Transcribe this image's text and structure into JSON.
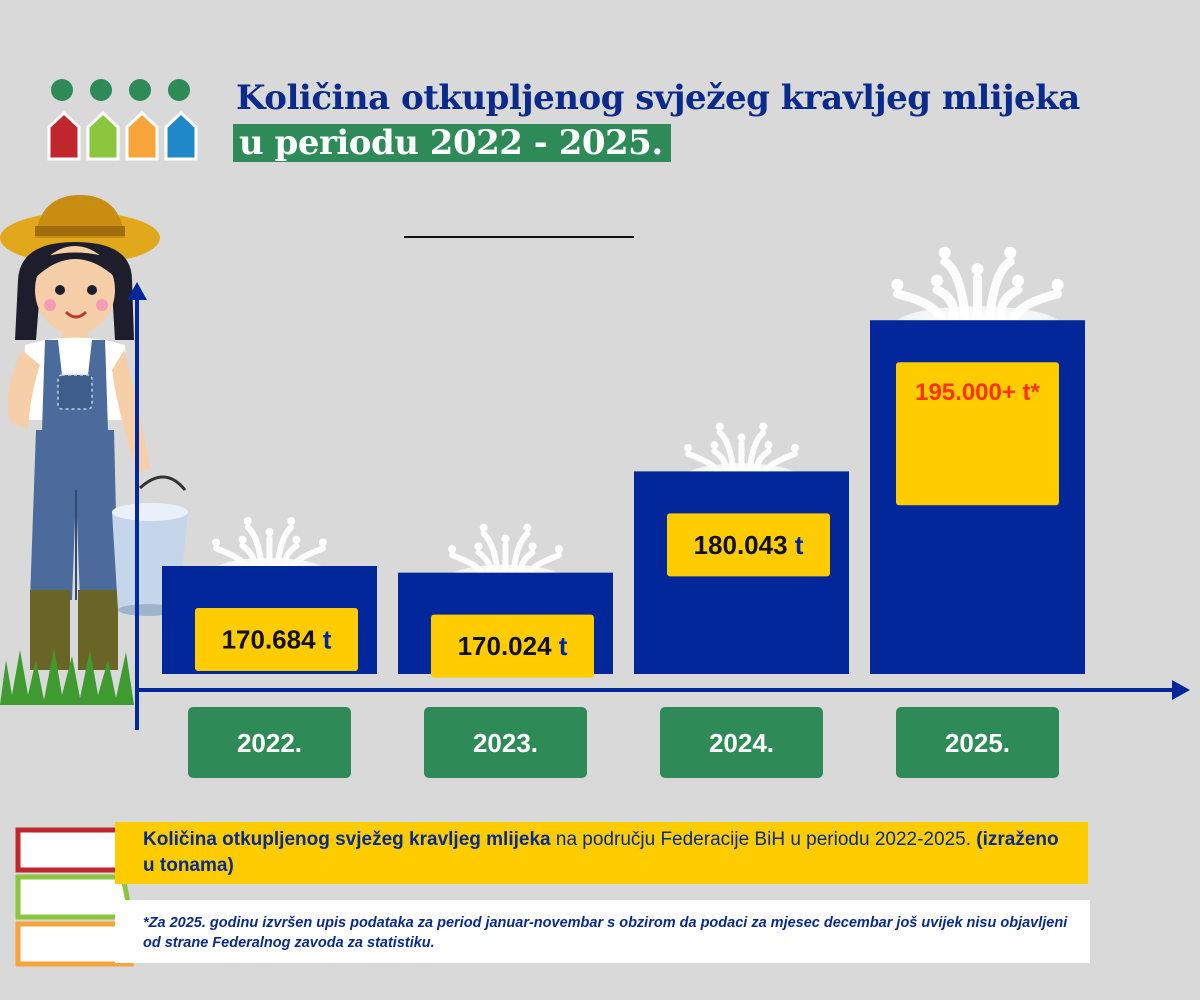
{
  "header": {
    "title_line1": "Količina otkupljenog svježeg kravljeg mlijeka",
    "title_line2": "u periodu 2022 - 2025."
  },
  "colors": {
    "bar": "#02279a",
    "label_box": "#ffcc00",
    "year_box": "#2e8b57",
    "title": "#0a2a8c",
    "highlight_value": "#ff3300",
    "logo_dots": "#2e8b57",
    "logo_houses": [
      "#c0262b",
      "#8cc63f",
      "#f7a43a",
      "#1e88c9"
    ]
  },
  "chart_data": {
    "type": "bar",
    "categories": [
      "2022.",
      "2023.",
      "2024.",
      "2025."
    ],
    "values": [
      170684,
      170024,
      180043,
      195000
    ],
    "value_labels": [
      {
        "num": "170.684",
        "unit": " t"
      },
      {
        "num": "170.024",
        "unit": " t"
      },
      {
        "num": "180.043",
        "unit": " t"
      },
      {
        "num": "195.000+ t*",
        "unit": ""
      }
    ],
    "unit": "t",
    "highlight_last": true
  },
  "caption": {
    "bold_part": "Količina otkupljenog svježeg kravljeg mlijeka",
    "normal_part": " na području Federacije BiH u periodu 2022-2025. ",
    "bold_suffix": "(izraženo u tonama)"
  },
  "note": {
    "text": "*Za 2025. godinu izvršen upis podataka za period januar-novembar s obzirom da podaci  za mjesec decembar  još uvijek nisu objavljeni od strane Federalnog zavoda za statistiku."
  },
  "icons": {
    "logo": "four-houses-logo-icon",
    "farmer": "farmer-girl-illustration-icon",
    "splash": "milk-splash-icon",
    "tabs": "colored-tab-outline-icon"
  }
}
